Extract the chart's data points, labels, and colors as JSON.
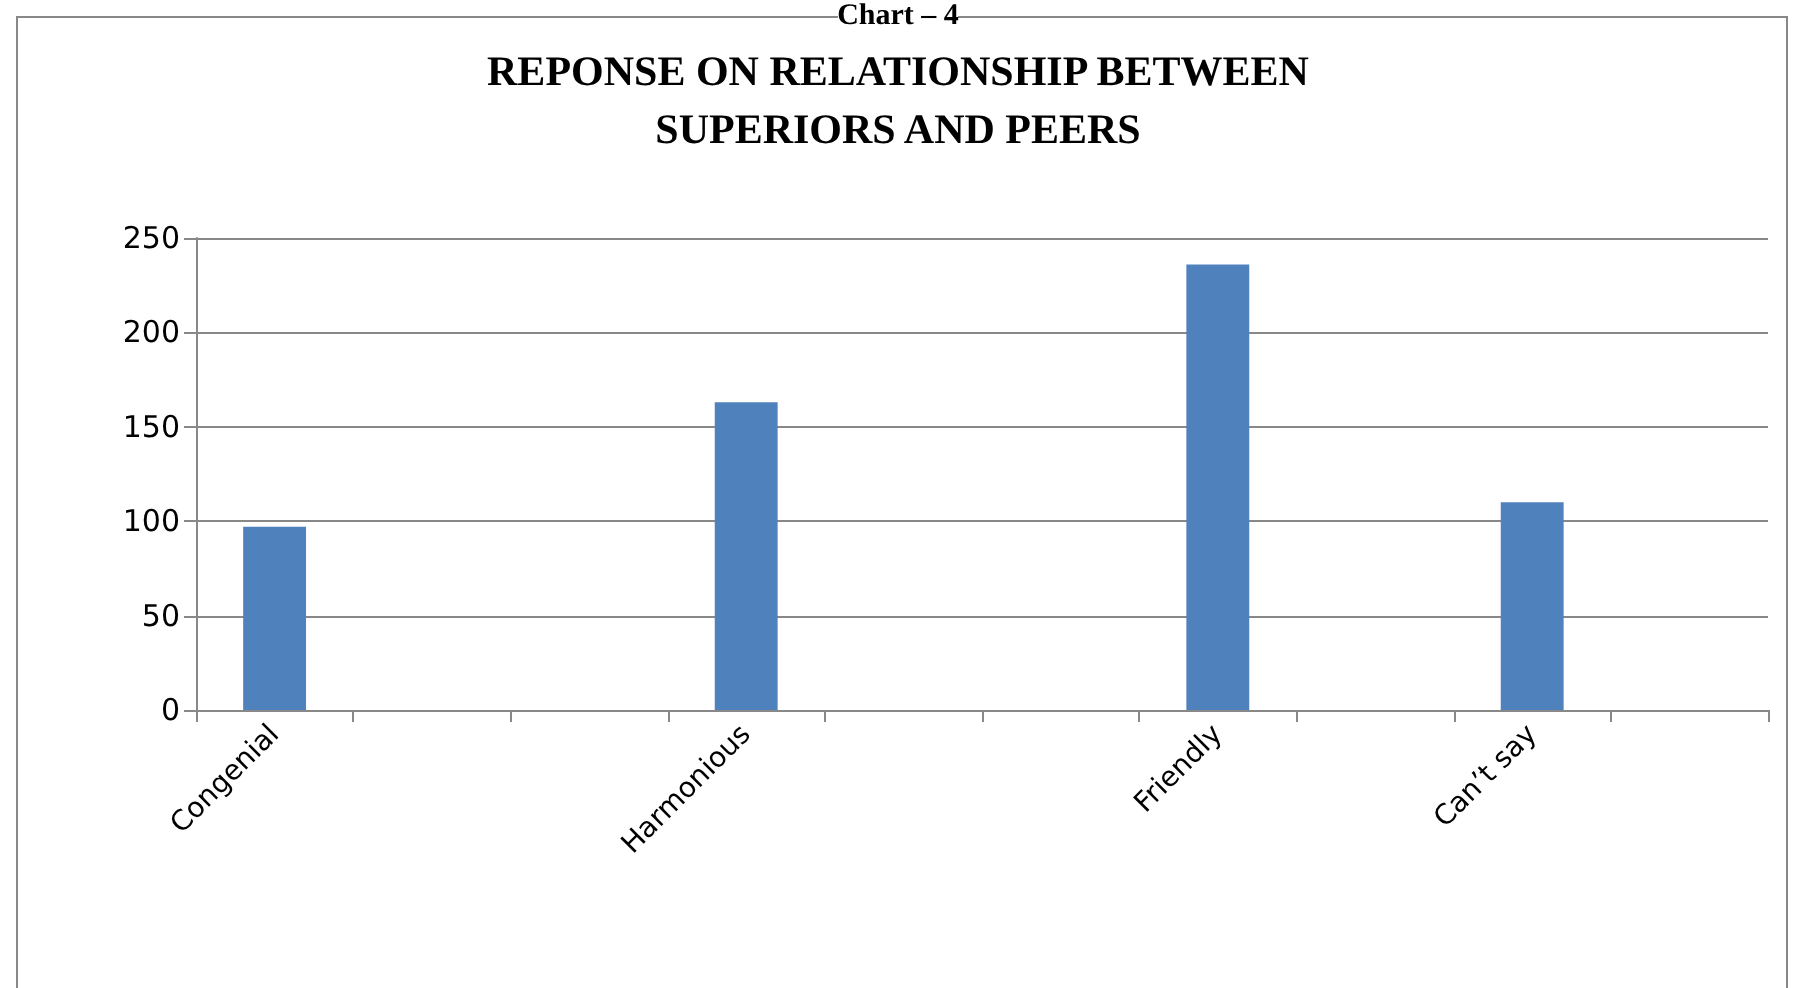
{
  "chart_data": {
    "type": "bar",
    "title": "REPONSE ON RELATIONSHIP BETWEEN\nSUPERIORS AND PEERS",
    "annotations": [
      "Chart – 4"
    ],
    "categories": [
      "Congenial",
      null,
      null,
      "Harmonious",
      null,
      null,
      "Friendly",
      null,
      "Can’t say",
      null
    ],
    "values": [
      97,
      null,
      null,
      163,
      null,
      null,
      236,
      null,
      110,
      null
    ],
    "color": "#4f81bd",
    "ylim": [
      0,
      250
    ],
    "yticks": [
      0,
      50,
      100,
      150,
      200,
      250
    ],
    "grid": "y"
  }
}
